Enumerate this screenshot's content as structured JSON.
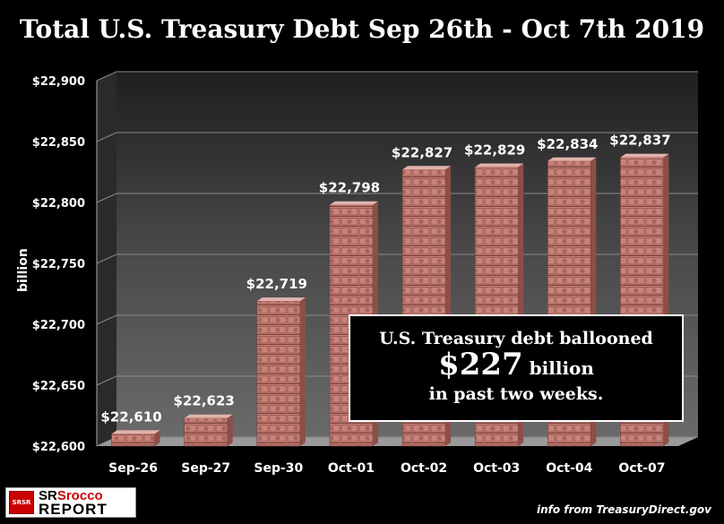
{
  "title": "Total U.S. Treasury Debt Sep 26th - Oct 7th 2019",
  "annotation": {
    "line1": "U.S. Treasury debt ballooned",
    "amount": "$227",
    "amount_suffix": " billion",
    "line3": "in past two weeks."
  },
  "logo": {
    "badge": "SRSR",
    "name_prefix": "SR",
    "name_red": "Srocco",
    "report": "REPORT"
  },
  "source": "info from TreasuryDirect.gov",
  "colors": {
    "background": "#000000",
    "plot_wall": "#555555",
    "bar_fill": "#c9837a",
    "bar_top": "#e2b3ad",
    "bar_side": "#8c4f48",
    "gridline": "#8a8a8a"
  },
  "chart_data": {
    "type": "bar",
    "title": "Total U.S. Treasury Debt Sep 26th - Oct 7th 2019",
    "xlabel": "",
    "ylabel": "billion",
    "ylim": [
      22600,
      22900
    ],
    "yticks": [
      22600,
      22650,
      22700,
      22750,
      22800,
      22850,
      22900
    ],
    "ytick_labels": [
      "$22,600",
      "$22,650",
      "$22,700",
      "$22,750",
      "$22,800",
      "$22,850",
      "$22,900"
    ],
    "categories": [
      "Sep-26",
      "Sep-27",
      "Sep-30",
      "Oct-01",
      "Oct-02",
      "Oct-03",
      "Oct-04",
      "Oct-07"
    ],
    "values": [
      22610,
      22623,
      22719,
      22798,
      22827,
      22829,
      22834,
      22837
    ],
    "data_labels": [
      "$22,610",
      "$22,623",
      "$22,719",
      "$22,798",
      "$22,827",
      "$22,829",
      "$22,834",
      "$22,837"
    ],
    "grid": true,
    "legend": "none"
  }
}
